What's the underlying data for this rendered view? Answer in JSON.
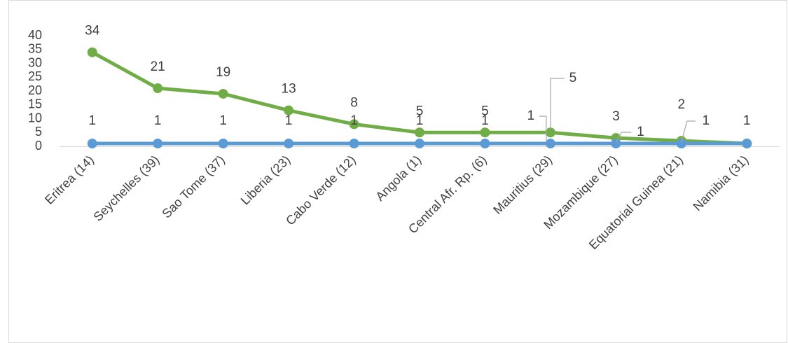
{
  "chart_data": {
    "type": "line",
    "categories": [
      "Eritrea (14)",
      "Seychelles (39)",
      "Sao Tome (37)",
      "Liberia (23)",
      "Cabo Verde (12)",
      "Angola (1)",
      "Central Afr. Rp. (6)",
      "Mauritius (29)",
      "Mozambique (27)",
      "Equatorial Guinea (21)",
      "Namibia (31)"
    ],
    "series": [
      {
        "color": "#70ad47",
        "values": [
          34,
          21,
          19,
          13,
          8,
          5,
          5,
          5,
          3,
          2,
          1
        ]
      },
      {
        "color": "#5b9bd5",
        "values": [
          1,
          1,
          1,
          1,
          1,
          1,
          1,
          1,
          1,
          1,
          1
        ]
      }
    ],
    "ylim": [
      0,
      40
    ],
    "yticks": [
      0,
      5,
      10,
      15,
      20,
      25,
      30,
      35,
      40
    ],
    "grid": false
  }
}
